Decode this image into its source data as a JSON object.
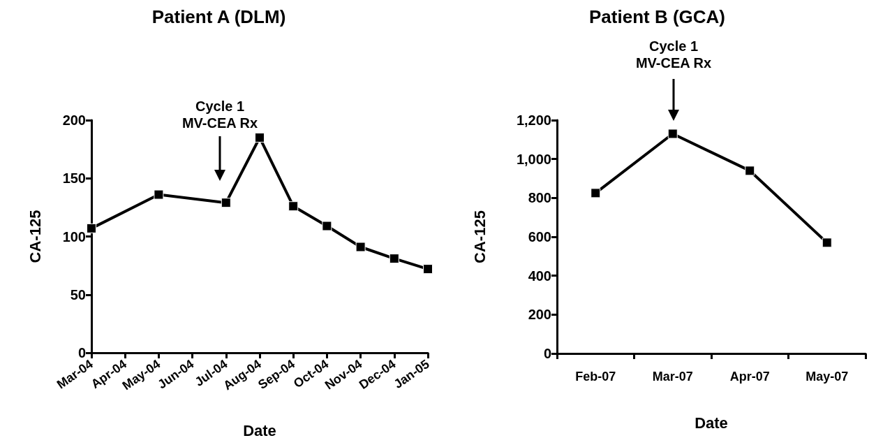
{
  "chart_data": [
    {
      "type": "line",
      "title": "Patient A (DLM)",
      "xlabel": "Date",
      "ylabel": "CA-125",
      "x": [
        "2004-03",
        "2004-05",
        "2004-07",
        "2004-08",
        "2004-09",
        "2004-10",
        "2004-11",
        "2004-12",
        "2005-01"
      ],
      "series": [
        {
          "color": "#000000",
          "values": [
            107,
            136,
            129,
            185,
            126,
            109,
            91,
            81,
            72
          ]
        }
      ],
      "xlim": [
        "2004-03",
        "2005-01"
      ],
      "xticks": [
        {
          "value": "2004-03",
          "label": "Mar-04"
        },
        {
          "value": "2004-04",
          "label": "Apr-04"
        },
        {
          "value": "2004-05",
          "label": "May-04"
        },
        {
          "value": "2004-06",
          "label": "Jun-04"
        },
        {
          "value": "2004-07",
          "label": "Jul-04"
        },
        {
          "value": "2004-08",
          "label": "Aug-04"
        },
        {
          "value": "2004-09",
          "label": "Sep-04"
        },
        {
          "value": "2004-10",
          "label": "Oct-04"
        },
        {
          "value": "2004-11",
          "label": "Nov-04"
        },
        {
          "value": "2004-12",
          "label": "Dec-04"
        },
        {
          "value": "2005-01",
          "label": "Jan-05"
        }
      ],
      "ylim": [
        0,
        200
      ],
      "yticks": [
        0,
        50,
        100,
        150,
        200
      ],
      "marker": "square",
      "grid": false,
      "annotations": [
        "Cycle 1\nMV-CEA Rx"
      ]
    },
    {
      "type": "line",
      "title": "Patient B (GCA)",
      "xlabel": "Date",
      "ylabel": "CA-125",
      "categories": [
        "Feb-07",
        "Mar-07",
        "Apr-07",
        "May-07"
      ],
      "series": [
        {
          "color": "#000000",
          "values": [
            825,
            1130,
            940,
            570
          ]
        }
      ],
      "ylim": [
        0,
        1200
      ],
      "yticks": [
        0,
        200,
        400,
        600,
        800,
        {
          "value": 1000,
          "label": "1,000"
        },
        {
          "value": 1200,
          "label": "1,200"
        }
      ],
      "marker": "square",
      "grid": false,
      "annotations": [
        "Cycle 1\nMV-CEA Rx"
      ]
    }
  ]
}
